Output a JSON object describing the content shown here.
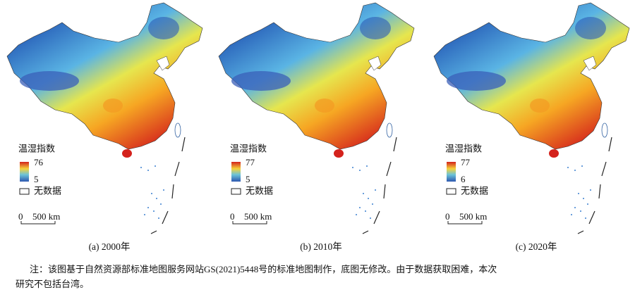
{
  "panels": [
    {
      "legend_title": "温湿指数",
      "max_label": "76",
      "min_label": "5",
      "no_data": "无数据",
      "scale_zero": "0",
      "scale_label": "500 km",
      "caption": "(a) 2000年"
    },
    {
      "legend_title": "温湿指数",
      "max_label": "77",
      "min_label": "5",
      "no_data": "无数据",
      "scale_zero": "0",
      "scale_label": "500 km",
      "caption": "(b) 2010年"
    },
    {
      "legend_title": "温湿指数",
      "max_label": "77",
      "min_label": "6",
      "no_data": "无数据",
      "scale_zero": "0",
      "scale_label": "500 km",
      "caption": "(c) 2020年"
    }
  ],
  "note": {
    "line1": "注：该图基于自然资源部标准地图服务网站GS(2021)5448号的标准地图制作，底图无修改。由于数据获取困难，本次",
    "line2": "研究不包括台湾。"
  }
}
